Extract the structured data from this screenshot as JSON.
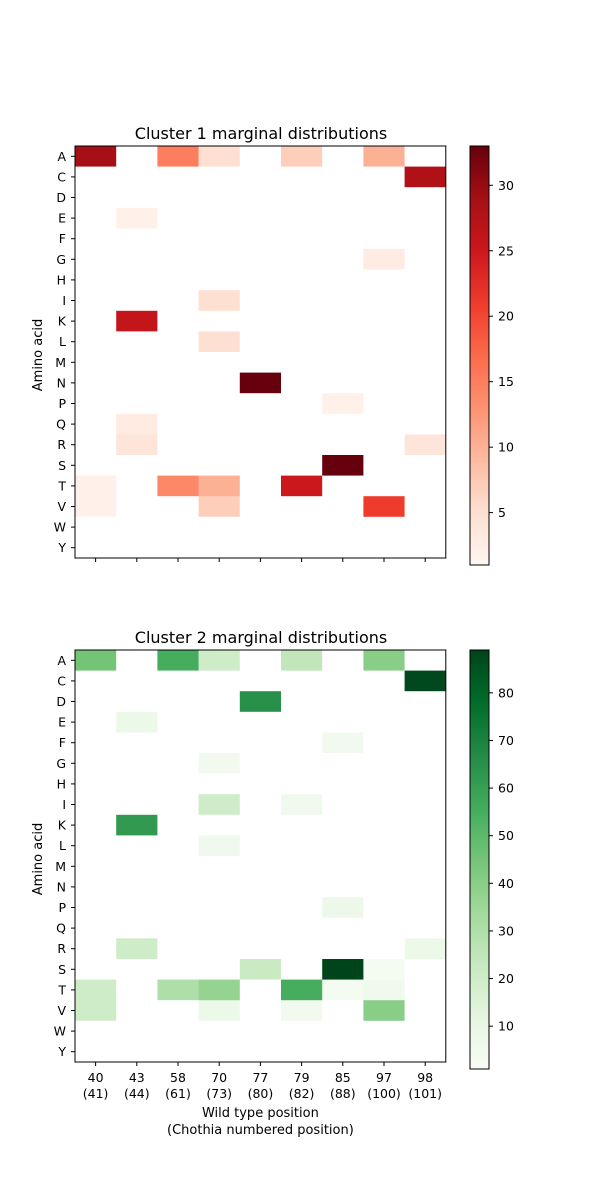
{
  "chart_data": [
    {
      "type": "heatmap",
      "title": "Cluster 1 marginal distributions",
      "ylabel": "Amino acid",
      "xlabel": "",
      "colormap": "Reds",
      "x": [
        "40",
        "43",
        "58",
        "70",
        "77",
        "79",
        "85",
        "97",
        "98"
      ],
      "x_secondary": [],
      "y": [
        "A",
        "C",
        "D",
        "E",
        "F",
        "G",
        "H",
        "I",
        "K",
        "L",
        "M",
        "N",
        "P",
        "Q",
        "R",
        "S",
        "T",
        "V",
        "W",
        "Y"
      ],
      "colorbar": {
        "min": 1,
        "max": 33,
        "ticks": [
          5,
          10,
          15,
          20,
          25,
          30
        ]
      },
      "values": [
        [
          29,
          0,
          15,
          5,
          0,
          7,
          0,
          10,
          0
        ],
        [
          0,
          0,
          0,
          0,
          0,
          0,
          0,
          0,
          28
        ],
        [
          0,
          0,
          0,
          0,
          0,
          0,
          0,
          0,
          0
        ],
        [
          0,
          2,
          0,
          0,
          0,
          0,
          0,
          0,
          0
        ],
        [
          0,
          0,
          0,
          0,
          0,
          0,
          0,
          0,
          0
        ],
        [
          0,
          0,
          0,
          0,
          0,
          0,
          0,
          3,
          0
        ],
        [
          0,
          0,
          0,
          0,
          0,
          0,
          0,
          0,
          0
        ],
        [
          0,
          0,
          0,
          5,
          0,
          0,
          0,
          0,
          0
        ],
        [
          0,
          26,
          0,
          0,
          0,
          0,
          0,
          0,
          0
        ],
        [
          0,
          0,
          0,
          5,
          0,
          0,
          0,
          0,
          0
        ],
        [
          0,
          0,
          0,
          0,
          0,
          0,
          0,
          0,
          0
        ],
        [
          0,
          0,
          0,
          0,
          33,
          0,
          0,
          0,
          0
        ],
        [
          0,
          0,
          0,
          0,
          0,
          0,
          2,
          0,
          0
        ],
        [
          0,
          3,
          0,
          0,
          0,
          0,
          0,
          0,
          0
        ],
        [
          0,
          4,
          0,
          0,
          0,
          0,
          0,
          0,
          4
        ],
        [
          0,
          0,
          0,
          0,
          0,
          0,
          33,
          0,
          0
        ],
        [
          2,
          0,
          14,
          10,
          0,
          25,
          0,
          0,
          0
        ],
        [
          2,
          0,
          0,
          7,
          0,
          0,
          0,
          21,
          0
        ],
        [
          0,
          0,
          0,
          0,
          0,
          0,
          0,
          0,
          0
        ],
        [
          0,
          0,
          0,
          0,
          0,
          0,
          0,
          0,
          0
        ]
      ]
    },
    {
      "type": "heatmap",
      "title": "Cluster 2 marginal distributions",
      "ylabel": "Amino acid",
      "xlabel": "Wild type position\n(Chothia numbered position)",
      "colormap": "Greens",
      "x": [
        "40",
        "43",
        "58",
        "70",
        "77",
        "79",
        "85",
        "97",
        "98"
      ],
      "x_secondary": [
        "(41)",
        "(44)",
        "(61)",
        "(73)",
        "(80)",
        "(82)",
        "(88)",
        "(100)",
        "(101)"
      ],
      "y": [
        "A",
        "C",
        "D",
        "E",
        "F",
        "G",
        "H",
        "I",
        "K",
        "L",
        "M",
        "N",
        "P",
        "Q",
        "R",
        "S",
        "T",
        "V",
        "W",
        "Y"
      ],
      "colorbar": {
        "min": 1,
        "max": 89,
        "ticks": [
          10,
          20,
          30,
          40,
          50,
          60,
          70,
          80
        ]
      },
      "values": [
        [
          45,
          0,
          55,
          20,
          0,
          25,
          0,
          40,
          0
        ],
        [
          0,
          0,
          0,
          0,
          0,
          0,
          0,
          0,
          88
        ],
        [
          0,
          0,
          0,
          0,
          65,
          0,
          0,
          0,
          0
        ],
        [
          0,
          8,
          0,
          0,
          0,
          0,
          0,
          0,
          0
        ],
        [
          0,
          0,
          0,
          0,
          0,
          0,
          4,
          0,
          0
        ],
        [
          0,
          0,
          0,
          4,
          0,
          0,
          0,
          0,
          0
        ],
        [
          0,
          0,
          0,
          0,
          0,
          0,
          0,
          0,
          0
        ],
        [
          0,
          0,
          0,
          20,
          0,
          5,
          0,
          0,
          0
        ],
        [
          0,
          62,
          0,
          0,
          0,
          0,
          0,
          0,
          0
        ],
        [
          0,
          0,
          0,
          5,
          0,
          0,
          0,
          0,
          0
        ],
        [
          0,
          0,
          0,
          0,
          0,
          0,
          0,
          0,
          0
        ],
        [
          0,
          0,
          0,
          0,
          0,
          0,
          0,
          0,
          0
        ],
        [
          0,
          0,
          0,
          0,
          0,
          0,
          7,
          0,
          0
        ],
        [
          0,
          0,
          0,
          0,
          0,
          0,
          0,
          0,
          0
        ],
        [
          0,
          20,
          0,
          0,
          0,
          0,
          0,
          0,
          8
        ],
        [
          0,
          0,
          0,
          0,
          22,
          0,
          89,
          3,
          0
        ],
        [
          20,
          0,
          30,
          37,
          0,
          55,
          3,
          5,
          0
        ],
        [
          20,
          0,
          0,
          8,
          0,
          4,
          0,
          40,
          0
        ],
        [
          0,
          0,
          0,
          0,
          0,
          0,
          0,
          0,
          0
        ],
        [
          0,
          0,
          0,
          0,
          0,
          0,
          0,
          0,
          0
        ]
      ]
    }
  ]
}
